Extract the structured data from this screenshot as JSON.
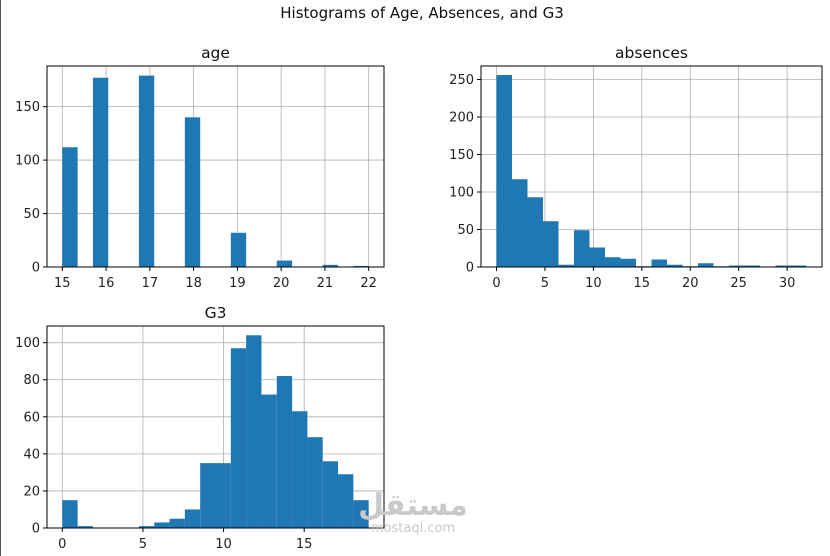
{
  "figure": {
    "title": "Histograms of Age, Absences, and G3"
  },
  "chart_data": [
    {
      "type": "bar",
      "name": "age",
      "title": "age",
      "xlabel": "",
      "ylabel": "",
      "xlim": [
        14.65,
        22.35
      ],
      "ylim": [
        0,
        188
      ],
      "xticks": [
        15,
        16,
        17,
        18,
        19,
        20,
        21,
        22
      ],
      "yticks": [
        0,
        50,
        100,
        150
      ],
      "grid": true,
      "bin_width": 0.35,
      "bin_starts": [
        15.0,
        15.35,
        15.7,
        16.05,
        16.4,
        16.75,
        17.1,
        17.45,
        17.8,
        18.15,
        18.5,
        18.85,
        19.2,
        19.55,
        19.9,
        20.25,
        20.6,
        20.95,
        21.3,
        21.65
      ],
      "values": [
        112,
        0,
        177,
        0,
        0,
        179,
        0,
        0,
        140,
        0,
        0,
        32,
        0,
        0,
        6,
        0,
        0,
        2,
        0,
        1
      ]
    },
    {
      "type": "bar",
      "name": "absences",
      "title": "absences",
      "xlabel": "",
      "ylabel": "",
      "xlim": [
        -1.6,
        33.6
      ],
      "ylim": [
        0,
        268
      ],
      "xticks": [
        0,
        5,
        10,
        15,
        20,
        25,
        30
      ],
      "yticks": [
        0,
        50,
        100,
        150,
        200,
        250
      ],
      "grid": true,
      "bin_width": 1.6,
      "bin_starts": [
        0,
        1.6,
        3.2,
        4.8,
        6.4,
        8.0,
        9.6,
        11.2,
        12.8,
        14.4,
        16.0,
        17.6,
        19.2,
        20.8,
        22.4,
        24.0,
        25.6,
        27.2,
        28.8,
        30.4
      ],
      "values": [
        256,
        117,
        93,
        61,
        3,
        49,
        26,
        13,
        11,
        1,
        10,
        3,
        1,
        5,
        1,
        2,
        2,
        0,
        2,
        2
      ]
    },
    {
      "type": "bar",
      "name": "G3",
      "title": "G3",
      "xlabel": "",
      "ylabel": "",
      "xlim": [
        -0.95,
        19.95
      ],
      "ylim": [
        0,
        109
      ],
      "xticks": [
        0,
        5,
        10,
        15
      ],
      "yticks": [
        0,
        20,
        40,
        60,
        80,
        100
      ],
      "grid": true,
      "bin_width": 0.95,
      "bin_starts": [
        0,
        0.95,
        1.9,
        2.85,
        3.8,
        4.75,
        5.7,
        6.65,
        7.6,
        8.55,
        9.5,
        10.45,
        11.4,
        12.35,
        13.3,
        14.25,
        15.2,
        16.15,
        17.1,
        18.05
      ],
      "values": [
        15,
        1,
        0,
        0,
        0,
        1,
        3,
        5,
        10,
        35,
        35,
        97,
        104,
        72,
        82,
        63,
        49,
        36,
        29,
        15
      ]
    }
  ],
  "watermark": {
    "logo": "مستقل",
    "url": "mostaql.com"
  },
  "colors": {
    "bar": "#1f77b4",
    "grid": "#b0b0b0",
    "axis": "#000000",
    "text": "#222222"
  }
}
